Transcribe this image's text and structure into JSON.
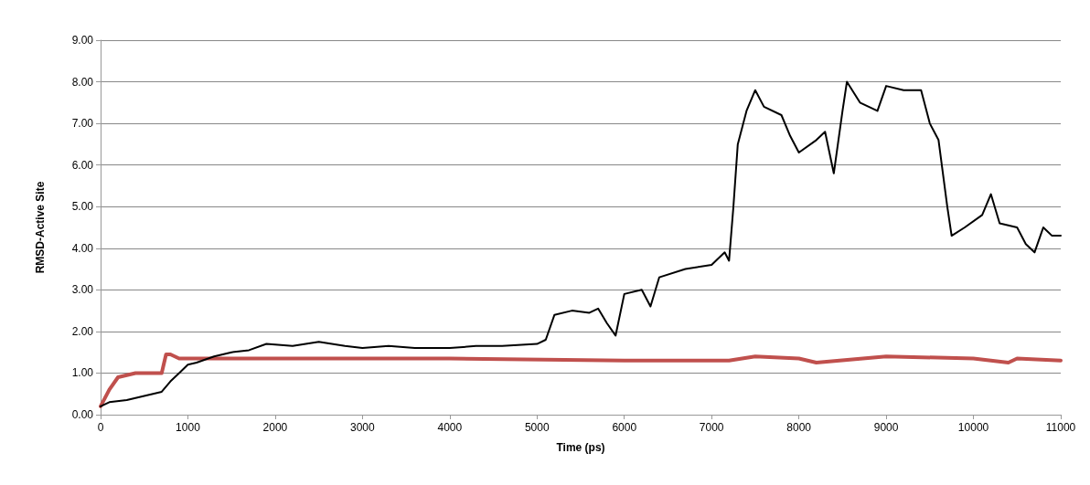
{
  "chart_data": {
    "type": "line",
    "xlabel": "Time (ps)",
    "ylabel": "RMSD-Active Site",
    "xlim": [
      0,
      11000
    ],
    "xticks": [
      0,
      1000,
      2000,
      3000,
      4000,
      5000,
      6000,
      7000,
      8000,
      9000,
      10000,
      11000
    ],
    "ylim": [
      0,
      9
    ],
    "yticks": [
      {
        "value": 0,
        "label": "0.00"
      },
      {
        "value": 1,
        "label": "1.00"
      },
      {
        "value": 2,
        "label": "2.00"
      },
      {
        "value": 3,
        "label": "3.00"
      },
      {
        "value": 4,
        "label": "4.00"
      },
      {
        "value": 5,
        "label": "5.00"
      },
      {
        "value": 6,
        "label": "6.00"
      },
      {
        "value": 7,
        "label": "7.00"
      },
      {
        "value": 8,
        "label": "8.00"
      },
      {
        "value": 9,
        "label": "9.00"
      }
    ],
    "grid": "y",
    "marker": "none",
    "line_style": "solid",
    "series": [
      {
        "color": "#000000",
        "x": [
          0,
          100,
          300,
          500,
          700,
          800,
          900,
          1000,
          1100,
          1300,
          1500,
          1700,
          1900,
          2200,
          2500,
          2800,
          3000,
          3300,
          3600,
          4000,
          4300,
          4600,
          5000,
          5100,
          5200,
          5400,
          5600,
          5700,
          5800,
          5900,
          6000,
          6200,
          6300,
          6400,
          6700,
          7000,
          7150,
          7200,
          7250,
          7300,
          7400,
          7500,
          7600,
          7800,
          7900,
          8000,
          8200,
          8300,
          8400,
          8500,
          8550,
          8700,
          8800,
          8900,
          9000,
          9200,
          9400,
          9500,
          9600,
          9700,
          9750,
          9900,
          10100,
          10200,
          10300,
          10500,
          10600,
          10700,
          10800,
          10900,
          11000
        ],
        "values": [
          0.2,
          0.3,
          0.35,
          0.45,
          0.55,
          0.8,
          1.0,
          1.2,
          1.25,
          1.4,
          1.5,
          1.55,
          1.7,
          1.65,
          1.75,
          1.65,
          1.6,
          1.65,
          1.6,
          1.6,
          1.65,
          1.65,
          1.7,
          1.8,
          2.4,
          2.5,
          2.45,
          2.55,
          2.2,
          1.9,
          2.9,
          3.0,
          2.6,
          3.3,
          3.5,
          3.6,
          3.9,
          3.7,
          5.0,
          6.5,
          7.3,
          7.8,
          7.4,
          7.2,
          6.7,
          6.3,
          6.6,
          6.8,
          5.8,
          7.3,
          8.0,
          7.5,
          7.4,
          7.3,
          7.9,
          7.8,
          7.8,
          7.0,
          6.6,
          5.0,
          4.3,
          4.5,
          4.8,
          5.3,
          4.6,
          4.5,
          4.1,
          3.9,
          4.5,
          4.3,
          4.3
        ]
      },
      {
        "color": "#c0504d",
        "x": [
          0,
          100,
          200,
          400,
          600,
          700,
          750,
          800,
          900,
          2000,
          4000,
          6000,
          7200,
          7500,
          8000,
          8200,
          9000,
          10000,
          10400,
          10500,
          11000
        ],
        "values": [
          0.2,
          0.6,
          0.9,
          1.0,
          1.0,
          1.0,
          1.45,
          1.45,
          1.35,
          1.35,
          1.35,
          1.3,
          1.3,
          1.4,
          1.35,
          1.25,
          1.4,
          1.35,
          1.25,
          1.35,
          1.3
        ]
      }
    ]
  }
}
